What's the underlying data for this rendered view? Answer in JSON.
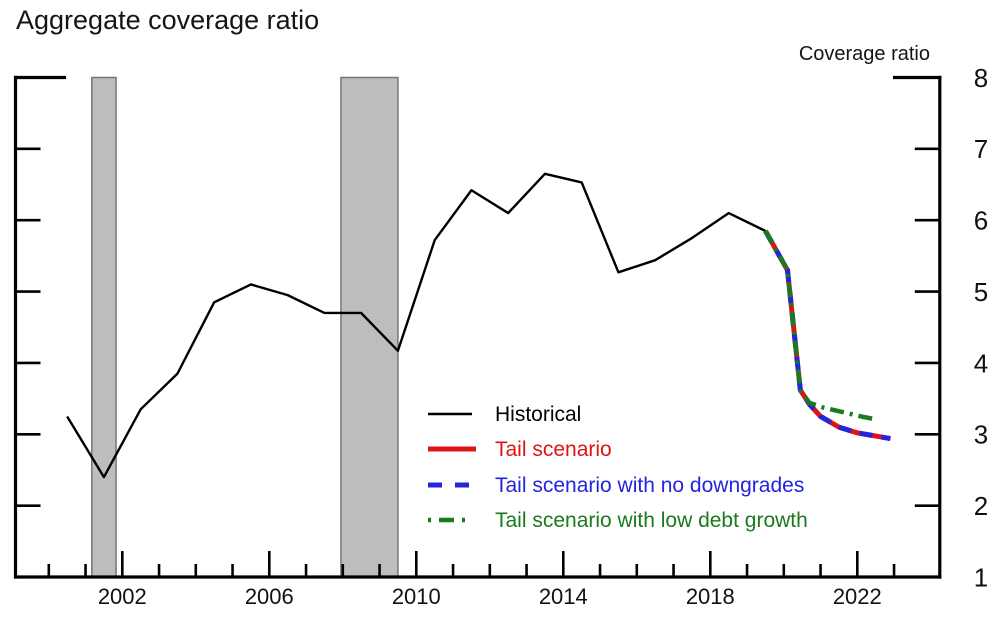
{
  "page": {
    "title": "Aggregate coverage ratio",
    "right_axis_header": "Coverage ratio"
  },
  "chart_data": {
    "type": "line",
    "title": "Aggregate coverage ratio",
    "ylabel": "Coverage ratio",
    "ylim": [
      1,
      8
    ],
    "yticks": [
      8,
      7,
      6,
      5,
      4,
      3,
      2,
      1
    ],
    "xlim": [
      1999.05,
      2024.3
    ],
    "xticks_labeled": [
      "2002",
      "2006",
      "2010",
      "2014",
      "2018",
      "2022"
    ],
    "xticks_labeled_years": [
      2002,
      2006,
      2010,
      2014,
      2018,
      2022
    ],
    "xticks_minor_years": [
      2000,
      2001,
      2002,
      2003,
      2004,
      2005,
      2006,
      2007,
      2008,
      2009,
      2010,
      2011,
      2012,
      2013,
      2014,
      2015,
      2016,
      2017,
      2018,
      2019,
      2020,
      2021,
      2022,
      2023
    ],
    "grid": false,
    "legend_position": "inside-lower-center",
    "recession_bands": [
      {
        "start": 2001.17,
        "end": 2001.83
      },
      {
        "start": 2007.95,
        "end": 2009.5
      }
    ],
    "colors": {
      "recession_fill": "#bdbdbd",
      "recession_border": "#757575",
      "axis": "#000000"
    },
    "series": [
      {
        "name": "Historical",
        "color": "#000000",
        "style": "solid",
        "width": 2.4,
        "x": [
          2000.5,
          2001.5,
          2002.5,
          2003.5,
          2004.5,
          2005.5,
          2006.5,
          2007.5,
          2008.5,
          2009.5,
          2010.5,
          2011.5,
          2012.5,
          2013.5,
          2014.5,
          2015.5,
          2016.5,
          2017.5,
          2018.5,
          2019.5
        ],
        "y": [
          3.25,
          2.4,
          3.35,
          3.85,
          4.85,
          5.1,
          4.95,
          4.7,
          4.7,
          4.17,
          5.72,
          6.42,
          6.1,
          6.65,
          6.53,
          5.27,
          5.44,
          5.75,
          6.1,
          5.85
        ]
      },
      {
        "name": "Tail scenario",
        "color": "#e01313",
        "style": "solid",
        "width": 5,
        "x": [
          2019.5,
          2020.1,
          2020.45,
          2020.7,
          2021.0,
          2021.5,
          2022.0,
          2022.9
        ],
        "y": [
          5.85,
          5.3,
          3.62,
          3.42,
          3.25,
          3.1,
          3.02,
          2.94
        ]
      },
      {
        "name": "Tail scenario with no downgrades",
        "color": "#2424dd",
        "style": "dashed",
        "width": 5,
        "x": [
          2019.5,
          2020.1,
          2020.45,
          2020.7,
          2021.0,
          2021.5,
          2022.0,
          2022.9
        ],
        "y": [
          5.85,
          5.3,
          3.62,
          3.42,
          3.25,
          3.1,
          3.02,
          2.94
        ]
      },
      {
        "name": "Tail scenario with low debt growth",
        "color": "#1a7a1e",
        "style": "dashdot",
        "width": 4.5,
        "x": [
          2019.5,
          2020.1,
          2020.45,
          2020.7,
          2021.1,
          2021.7,
          2022.1,
          2022.5
        ],
        "y": [
          5.85,
          5.3,
          3.62,
          3.44,
          3.37,
          3.3,
          3.25,
          3.21
        ]
      }
    ]
  }
}
